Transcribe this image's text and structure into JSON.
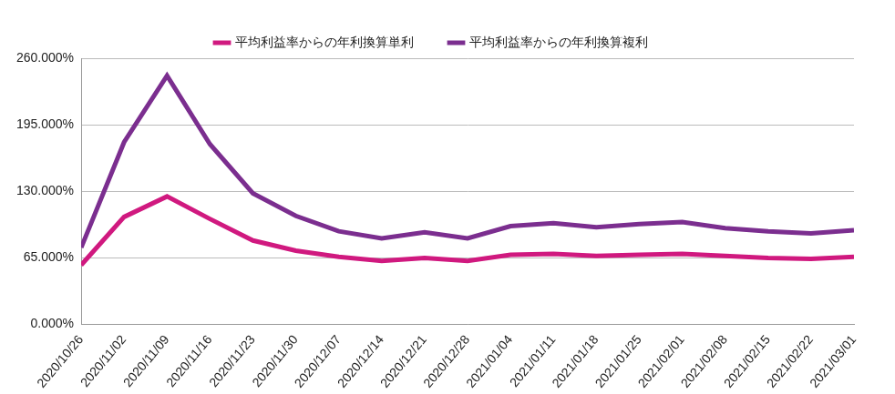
{
  "chart_data": {
    "type": "line",
    "categories": [
      "2020/10/26",
      "2020/11/02",
      "2020/11/09",
      "2020/11/16",
      "2020/11/23",
      "2020/11/30",
      "2020/12/07",
      "2020/12/14",
      "2020/12/21",
      "2020/12/28",
      "2021/01/04",
      "2021/01/11",
      "2021/01/18",
      "2021/01/25",
      "2021/02/01",
      "2021/02/08",
      "2021/02/15",
      "2021/02/22",
      "2021/03/01"
    ],
    "series": [
      {
        "name": "平均利益率からの年利換算単利",
        "color": "#d0197f",
        "values": [
          58,
          105,
          125,
          103,
          82,
          72,
          66,
          62,
          65,
          62,
          68,
          69,
          67,
          68,
          69,
          67,
          65,
          64,
          66
        ]
      },
      {
        "name": "平均利益率からの年利換算複利",
        "color": "#7b2e8f",
        "values": [
          75,
          178,
          243,
          176,
          128,
          106,
          91,
          84,
          90,
          84,
          96,
          99,
          95,
          98,
          100,
          94,
          91,
          89,
          92
        ]
      }
    ],
    "ylim": [
      0,
      260
    ],
    "yticks": [
      {
        "value": 0,
        "label": "0.000%"
      },
      {
        "value": 65,
        "label": "65.000%"
      },
      {
        "value": 130,
        "label": "130.000%"
      },
      {
        "value": 195,
        "label": "195.000%"
      },
      {
        "value": 260,
        "label": "260.000%"
      }
    ],
    "grid": true,
    "legend": "top"
  }
}
